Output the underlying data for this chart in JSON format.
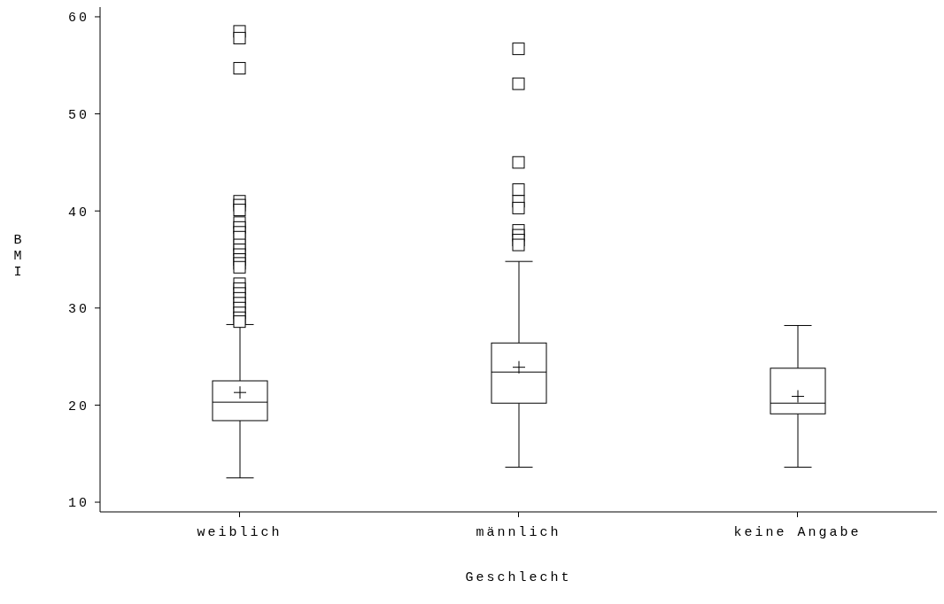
{
  "chart_data": {
    "type": "box",
    "xlabel": "Geschlecht",
    "ylabel": "BMI",
    "categories": [
      "weiblich",
      "männlich",
      "keine Angabe"
    ],
    "boxes": [
      {
        "low": 12.5,
        "q1": 18.4,
        "median": 20.3,
        "q3": 22.5,
        "high": 28.3,
        "mean": 21.3,
        "outliers": [
          58.5,
          57.8,
          54.7,
          41.0,
          40.6,
          40.1,
          38.8,
          38.3,
          37.8,
          37.3,
          36.5,
          36.0,
          35.5,
          35.0,
          34.6,
          34.2,
          32.5,
          32.0,
          31.5,
          31.0,
          30.5,
          30.0,
          29.5,
          29.0,
          28.6
        ]
      },
      {
        "low": 13.6,
        "q1": 20.2,
        "median": 23.4,
        "q3": 26.4,
        "high": 34.8,
        "mean": 23.9,
        "outliers": [
          56.7,
          53.1,
          45.0,
          42.2,
          41.0,
          40.3,
          38.0,
          37.5,
          37.0,
          36.5
        ]
      },
      {
        "low": 13.6,
        "q1": 19.1,
        "median": 20.2,
        "q3": 23.8,
        "high": 28.2,
        "mean": 20.9
      }
    ],
    "color": "#000000",
    "marker": "square",
    "ylim": [
      9,
      61
    ],
    "yticks": [
      10,
      20,
      30,
      40,
      50,
      60
    ],
    "grid": false
  }
}
